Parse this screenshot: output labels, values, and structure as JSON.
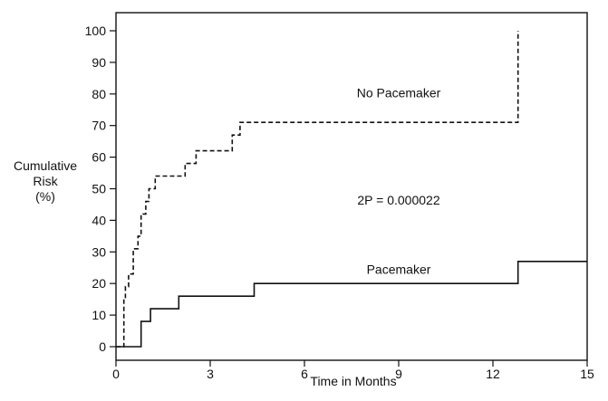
{
  "chart_data": {
    "type": "line",
    "step": true,
    "title": "",
    "xlabel": "Time in Months",
    "ylabel": [
      "Cumulative",
      "Risk",
      "(%)"
    ],
    "xlim": [
      0,
      15
    ],
    "ylim": [
      0,
      100
    ],
    "xticks": [
      0,
      3,
      6,
      9,
      12,
      15
    ],
    "yticks": [
      0,
      10,
      20,
      30,
      40,
      50,
      60,
      70,
      80,
      90,
      100
    ],
    "grid": false,
    "series": [
      {
        "name": "No Pacemaker",
        "style": "dashed",
        "color": "#111111",
        "points": [
          [
            0,
            0
          ],
          [
            0.25,
            0
          ],
          [
            0.25,
            15
          ],
          [
            0.3,
            15
          ],
          [
            0.3,
            19
          ],
          [
            0.4,
            19
          ],
          [
            0.4,
            23
          ],
          [
            0.55,
            23
          ],
          [
            0.55,
            31
          ],
          [
            0.7,
            31
          ],
          [
            0.7,
            35
          ],
          [
            0.8,
            35
          ],
          [
            0.8,
            42
          ],
          [
            0.95,
            42
          ],
          [
            0.95,
            46
          ],
          [
            1.05,
            46
          ],
          [
            1.05,
            50
          ],
          [
            1.25,
            50
          ],
          [
            1.25,
            54
          ],
          [
            2.2,
            54
          ],
          [
            2.2,
            58
          ],
          [
            2.55,
            58
          ],
          [
            2.55,
            62
          ],
          [
            3.7,
            62
          ],
          [
            3.7,
            67
          ],
          [
            3.95,
            67
          ],
          [
            3.95,
            71
          ],
          [
            12.8,
            71
          ],
          [
            12.8,
            100
          ]
        ]
      },
      {
        "name": "Pacemaker",
        "style": "solid",
        "color": "#111111",
        "points": [
          [
            0,
            0
          ],
          [
            0.8,
            0
          ],
          [
            0.8,
            8
          ],
          [
            1.1,
            8
          ],
          [
            1.1,
            12
          ],
          [
            2.0,
            12
          ],
          [
            2.0,
            16
          ],
          [
            4.4,
            16
          ],
          [
            4.4,
            20
          ],
          [
            12.8,
            20
          ],
          [
            12.8,
            27
          ],
          [
            15,
            27
          ]
        ]
      }
    ],
    "annotations": [
      {
        "text": "No Pacemaker",
        "x": 9.0,
        "y": 79
      },
      {
        "text": "2P = 0.000022",
        "x": 9.0,
        "y": 45
      },
      {
        "text": "Pacemaker",
        "x": 9.0,
        "y": 23
      }
    ]
  }
}
